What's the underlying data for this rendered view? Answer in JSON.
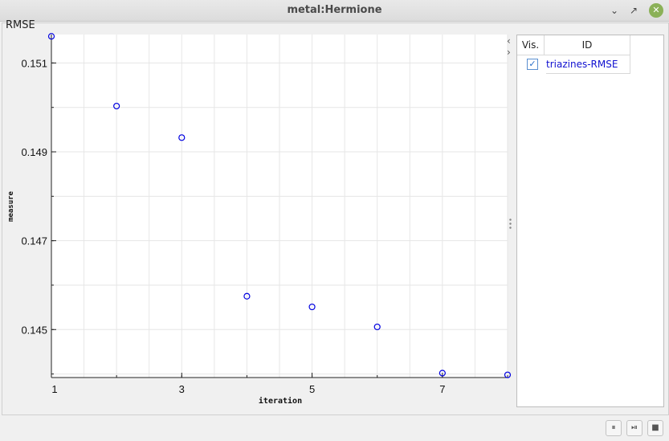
{
  "window": {
    "title": "metal:Hermione",
    "minimize_glyph": "⌄",
    "restore_glyph": "↗",
    "close_glyph": "✕"
  },
  "chart_data": {
    "type": "scatter",
    "title": "RMSE",
    "xlabel": "iteration",
    "ylabel": "measure",
    "xlim": [
      1,
      8
    ],
    "ylim": [
      0.14392,
      0.15164
    ],
    "x_ticks": [
      1,
      3,
      5,
      7
    ],
    "y_ticks": [
      0.145,
      0.147,
      0.149,
      0.151
    ],
    "x_tick_labels": [
      "1",
      "3",
      "5",
      "7"
    ],
    "y_tick_labels": [
      "0.145",
      "0.147",
      "0.149",
      "0.151"
    ],
    "grid": true,
    "series": [
      {
        "color": "#0000e0",
        "x": [
          1,
          2,
          3,
          4,
          5,
          6,
          7,
          8
        ],
        "y": [
          0.1516,
          0.15003,
          0.14932,
          0.14575,
          0.14551,
          0.14506,
          0.14402,
          0.14398
        ]
      }
    ]
  },
  "legend_table": {
    "headers": [
      "Vis.",
      "ID"
    ],
    "rows": [
      {
        "visible": true,
        "check_glyph": "✓",
        "id": "triazines-RMSE",
        "color": "#0000e0"
      }
    ]
  },
  "nav": {
    "prev_glyph": "‹",
    "next_glyph": "›"
  },
  "controls": {
    "pause_glyph": "⏸",
    "step_glyph": "⏯",
    "stop_glyph": "■"
  }
}
